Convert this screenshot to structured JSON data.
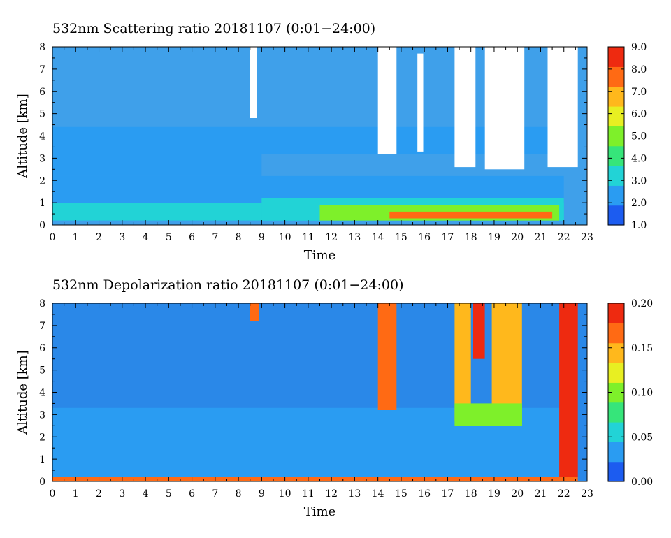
{
  "chart_data": [
    {
      "type": "heatmap",
      "title": "532nm Scattering ratio  20181107 (0:01−24:00)",
      "xlabel": "Time",
      "ylabel": "Altitude [km]",
      "xlim": [
        0,
        23
      ],
      "ylim": [
        0,
        8
      ],
      "x_ticks": [
        "0",
        "1",
        "2",
        "3",
        "4",
        "5",
        "6",
        "7",
        "8",
        "9",
        "10",
        "11",
        "12",
        "13",
        "14",
        "15",
        "16",
        "17",
        "18",
        "19",
        "20",
        "21",
        "22",
        "23"
      ],
      "y_ticks": [
        "0",
        "1",
        "2",
        "3",
        "4",
        "5",
        "6",
        "7",
        "8"
      ],
      "colorbar": {
        "min": 1.0,
        "max": 9.0,
        "ticks": [
          "1.0",
          "2.0",
          "3.0",
          "4.0",
          "5.0",
          "6.0",
          "7.0",
          "8.0",
          "9.0"
        ],
        "colors": [
          "#1c5cf0",
          "#2a9cf2",
          "#22d3d6",
          "#36e57a",
          "#7ef02a",
          "#e8ef22",
          "#ffb81c",
          "#ff6a14",
          "#ee2a10"
        ]
      },
      "background_color": "#3fa0ea",
      "regions": [
        {
          "x": [
            0,
            22
          ],
          "y": [
            3.2,
            4.4
          ],
          "value": 2.0
        },
        {
          "x": [
            0,
            9
          ],
          "y": [
            2.2,
            3.2
          ],
          "value": 2.5
        },
        {
          "x": [
            0,
            22
          ],
          "y": [
            1.0,
            2.2
          ],
          "value": 2.6
        },
        {
          "x": [
            0,
            22
          ],
          "y": [
            0.2,
            1.0
          ],
          "value": 3.2
        },
        {
          "x": [
            9,
            22
          ],
          "y": [
            0.2,
            1.2
          ],
          "value": 3.6
        },
        {
          "x": [
            11.5,
            21.8
          ],
          "y": [
            0.2,
            0.9
          ],
          "value": 4.6
        },
        {
          "x": [
            14.5,
            21.5
          ],
          "y": [
            0.3,
            0.6
          ],
          "value": 7.4
        },
        {
          "x": [
            8.5,
            8.8
          ],
          "y": [
            4.8,
            8.0
          ],
          "value": 9.5
        },
        {
          "x": [
            14.0,
            14.8
          ],
          "y": [
            3.2,
            8.0
          ],
          "value": 9.5
        },
        {
          "x": [
            15.7,
            15.95
          ],
          "y": [
            3.3,
            7.7
          ],
          "value": 9.5
        },
        {
          "x": [
            17.3,
            18.2
          ],
          "y": [
            2.6,
            8.0
          ],
          "value": 9.5
        },
        {
          "x": [
            18.6,
            20.3
          ],
          "y": [
            2.5,
            8.0
          ],
          "value": 9.5
        },
        {
          "x": [
            21.3,
            22.6
          ],
          "y": [
            2.6,
            8.0
          ],
          "value": 9.5
        }
      ]
    },
    {
      "type": "heatmap",
      "title": "532nm Depolarization ratio  20181107 (0:01−24:00)",
      "xlabel": "Time",
      "ylabel": "Altitude [km]",
      "xlim": [
        0,
        23
      ],
      "ylim": [
        0,
        8
      ],
      "x_ticks": [
        "0",
        "1",
        "2",
        "3",
        "4",
        "5",
        "6",
        "7",
        "8",
        "9",
        "10",
        "11",
        "12",
        "13",
        "14",
        "15",
        "16",
        "17",
        "18",
        "19",
        "20",
        "21",
        "22",
        "23"
      ],
      "y_ticks": [
        "0",
        "1",
        "2",
        "3",
        "4",
        "5",
        "6",
        "7",
        "8"
      ],
      "colorbar": {
        "min": 0.0,
        "max": 0.2,
        "ticks": [
          "0.00",
          "0.05",
          "0.10",
          "0.15",
          "0.20"
        ],
        "colors": [
          "#1c5cf0",
          "#2a9cf2",
          "#22d3d6",
          "#36e57a",
          "#7ef02a",
          "#e8ef22",
          "#ffb81c",
          "#ff6a14",
          "#ee2a10"
        ]
      },
      "background_color": "#2a88e8",
      "regions": [
        {
          "x": [
            0,
            22
          ],
          "y": [
            2.1,
            3.3
          ],
          "value": 0.036
        },
        {
          "x": [
            0,
            22
          ],
          "y": [
            0.2,
            2.1
          ],
          "value": 0.042
        },
        {
          "x": [
            0,
            22.6
          ],
          "y": [
            0.0,
            0.2
          ],
          "value": 0.17
        },
        {
          "x": [
            8.5,
            8.9
          ],
          "y": [
            7.2,
            8.0
          ],
          "value": 0.16
        },
        {
          "x": [
            14.0,
            14.8
          ],
          "y": [
            3.2,
            8.0
          ],
          "value": 0.16
        },
        {
          "x": [
            17.3,
            18.0
          ],
          "y": [
            2.7,
            8.0
          ],
          "value": 0.15
        },
        {
          "x": [
            18.1,
            18.6
          ],
          "y": [
            5.5,
            8.0
          ],
          "value": 0.18
        },
        {
          "x": [
            18.9,
            20.2
          ],
          "y": [
            2.5,
            8.0
          ],
          "value": 0.15
        },
        {
          "x": [
            17.3,
            20.2
          ],
          "y": [
            2.5,
            3.5
          ],
          "value": 0.09
        },
        {
          "x": [
            21.8,
            22.6
          ],
          "y": [
            0.2,
            8.0
          ],
          "value": 0.19
        }
      ]
    }
  ]
}
